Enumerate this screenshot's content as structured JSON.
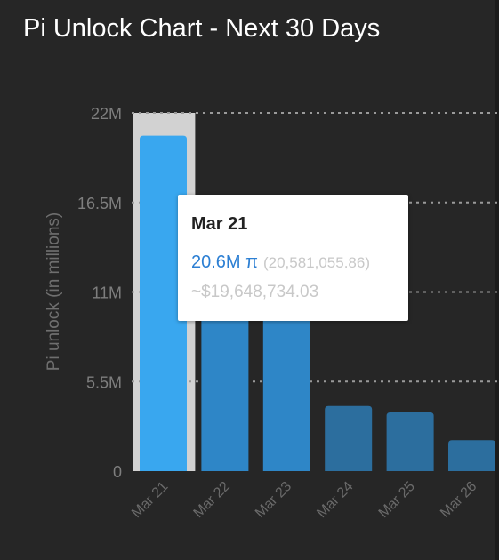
{
  "title": "Pi Unlock Chart - Next 30 Days",
  "chart_data": {
    "type": "bar",
    "title": "Pi Unlock Chart - Next 30 Days",
    "ylabel": "Pi unlock (in millions)",
    "xlabel": "",
    "categories": [
      "Mar 21",
      "Mar 22",
      "Mar 23",
      "Mar 24",
      "Mar 25",
      "Mar 26"
    ],
    "values": [
      20.6,
      10.3,
      10.3,
      4.0,
      3.6,
      1.9
    ],
    "ylim": [
      0,
      22
    ],
    "yticks": [
      0,
      5.5,
      11,
      16.5,
      22
    ],
    "ytick_labels": [
      "0",
      "5.5M",
      "11M",
      "16.5M",
      "22M"
    ],
    "highlighted_index": 0,
    "grid": "horizontal dotted",
    "colors": {
      "bar": "#2e86c7",
      "bar_highlight": "#39a7ef",
      "bar_faded": "#2c6e9e",
      "hover_band": "#d2d2d2",
      "grid": "#9a9a9a",
      "axis_text": "#7e7e7e"
    }
  },
  "tooltip": {
    "date": "Mar 21",
    "pi_value": "20.6M π",
    "exact_value": "(20,581,055.86)",
    "usd_value": "~$19,648,734.03"
  }
}
